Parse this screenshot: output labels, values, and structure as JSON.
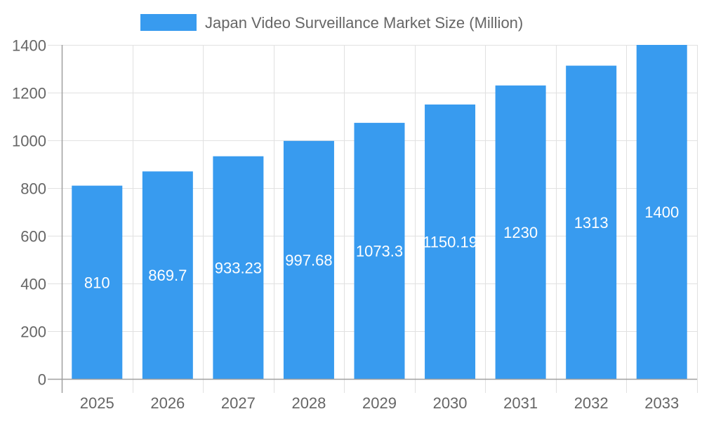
{
  "chart_data": {
    "type": "bar",
    "title": "",
    "legend": {
      "label": "Japan Video Surveillance Market Size (Million)",
      "placement": "top"
    },
    "categories": [
      "2025",
      "2026",
      "2027",
      "2028",
      "2029",
      "2030",
      "2031",
      "2032",
      "2033"
    ],
    "series": [
      {
        "name": "Japan Video Surveillance Market Size (Million)",
        "values": [
          810,
          869.7,
          933.23,
          997.68,
          1073.3,
          1150.19,
          1230,
          1313,
          1400
        ],
        "labels": [
          "810",
          "869.7",
          "933.23",
          "997.68",
          "1073.3",
          "1150.19",
          "1230",
          "1313",
          "1400"
        ]
      }
    ],
    "ylim": [
      0,
      1400
    ],
    "yticks": [
      0,
      200,
      400,
      600,
      800,
      1000,
      1200,
      1400
    ],
    "grid": true,
    "xlabel": "",
    "ylabel": "",
    "colors": {
      "bar": "#389bef",
      "grid": "#e1e1e1",
      "axis": "#a0a0a0",
      "text": "#666666",
      "label": "#ffffff"
    }
  }
}
